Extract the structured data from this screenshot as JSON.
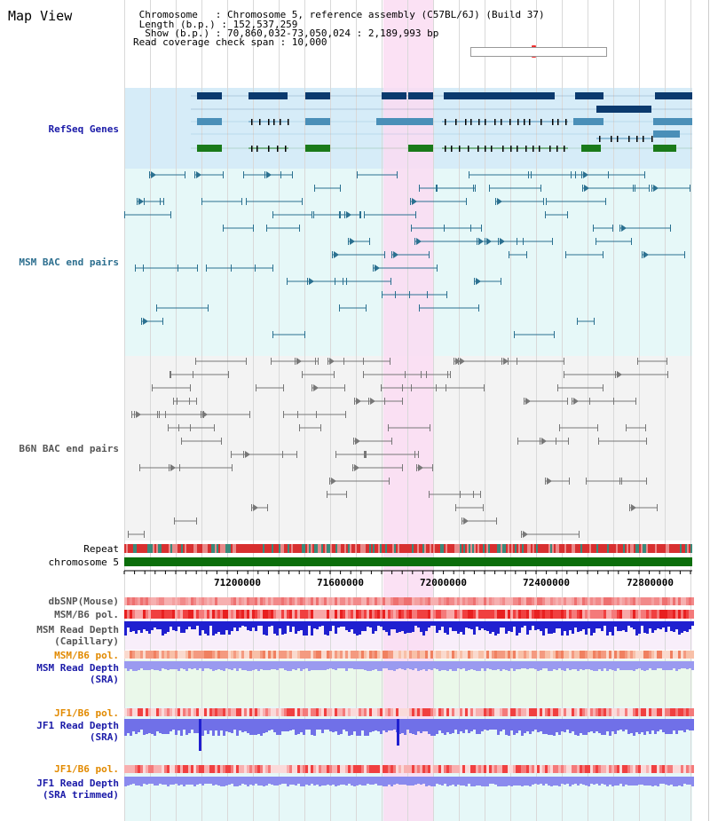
{
  "view": {
    "title": "Map View"
  },
  "header": {
    "lines": [
      " Chromosome   : Chromosome 5, reference assembly (C57BL/6J) (Build 37)",
      " Length (b.p.) : 152,537,259",
      "  Show (b.p.) : 70,860,032-73,050,024 : 2,189,993 bp",
      "Read coverage check span : 10,000"
    ]
  },
  "tracks": {
    "refseq": "RefSeq Genes",
    "msm_bac": "MSM BAC end pairs",
    "b6n_bac": "B6N BAC end pairs",
    "repeat": "Repeat",
    "chromosome": "chromosome 5",
    "dbsnp": "dbSNP(Mouse)",
    "msm_pol1": "MSM/B6 pol.",
    "msm_depth_cap": [
      "MSM Read Depth",
      "(Capillary)"
    ],
    "msm_pol2": "MSM/B6 pol.",
    "msm_depth_sra": [
      "MSM Read Depth",
      "(SRA)"
    ],
    "jf1_pol1": "JF1/B6 pol.",
    "jf1_depth_sra": [
      "JF1 Read Depth",
      "(SRA)"
    ],
    "jf1_pol2": "JF1/B6 pol.",
    "jf1_depth_trim": [
      "JF1 Read Depth",
      "(SRA trimmed)"
    ]
  },
  "axis": {
    "ticks": [
      "71200000",
      "71600000",
      "72000000",
      "72400000",
      "72800000"
    ]
  },
  "colors": {
    "refseq_bg": "#d6ecf8",
    "msm_bg": "#e6f8f8",
    "b6n_bg": "#f3f3f3",
    "highlight": "#fadcf2",
    "gene_dark": "#0b3a6e",
    "gene_mid": "#4a8fb8",
    "gene_green": "#1a7a1a",
    "chromosome": "#0b6e0b"
  }
}
